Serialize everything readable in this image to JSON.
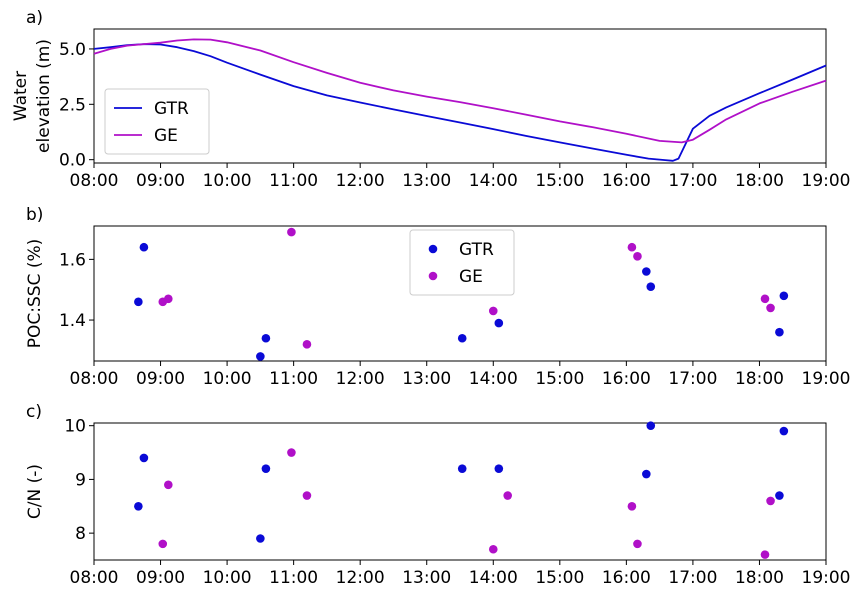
{
  "colors": {
    "gtr": "#0a0ad6",
    "ge": "#b010c8"
  },
  "chart_data": [
    {
      "panel": "a)",
      "type": "line",
      "ylabel": [
        "Water",
        "elevation (m)"
      ],
      "xlim": [
        "08:00",
        "19:00"
      ],
      "ylim": [
        -0.15,
        5.9
      ],
      "xticks": [
        "08:00",
        "09:00",
        "10:00",
        "11:00",
        "12:00",
        "13:00",
        "14:00",
        "15:00",
        "16:00",
        "17:00",
        "18:00",
        "19:00"
      ],
      "yticks": [
        "0.0",
        "2.5",
        "5.0"
      ],
      "legend": {
        "position": "lower-left",
        "entries": [
          "GTR",
          "GE"
        ]
      },
      "series": [
        {
          "name": "GTR",
          "points": [
            [
              "08:00",
              5.0
            ],
            [
              "08:15",
              5.08
            ],
            [
              "08:30",
              5.17
            ],
            [
              "08:45",
              5.22
            ],
            [
              "09:00",
              5.2
            ],
            [
              "09:15",
              5.08
            ],
            [
              "09:30",
              4.9
            ],
            [
              "09:45",
              4.67
            ],
            [
              "10:00",
              4.38
            ],
            [
              "10:30",
              3.84
            ],
            [
              "11:00",
              3.32
            ],
            [
              "11:30",
              2.9
            ],
            [
              "12:00",
              2.58
            ],
            [
              "12:30",
              2.27
            ],
            [
              "13:00",
              1.97
            ],
            [
              "13:30",
              1.68
            ],
            [
              "14:00",
              1.38
            ],
            [
              "14:30",
              1.07
            ],
            [
              "15:00",
              0.78
            ],
            [
              "15:30",
              0.5
            ],
            [
              "16:00",
              0.22
            ],
            [
              "16:20",
              0.05
            ],
            [
              "16:35",
              -0.02
            ],
            [
              "16:42",
              -0.05
            ],
            [
              "16:47",
              0.05
            ],
            [
              "17:00",
              1.4
            ],
            [
              "17:15",
              1.98
            ],
            [
              "17:30",
              2.36
            ],
            [
              "18:00",
              3.0
            ],
            [
              "18:30",
              3.62
            ],
            [
              "19:00",
              4.25
            ]
          ]
        },
        {
          "name": "GE",
          "points": [
            [
              "08:00",
              4.78
            ],
            [
              "08:15",
              5.0
            ],
            [
              "08:30",
              5.15
            ],
            [
              "08:45",
              5.22
            ],
            [
              "09:00",
              5.28
            ],
            [
              "09:15",
              5.38
            ],
            [
              "09:30",
              5.43
            ],
            [
              "09:45",
              5.42
            ],
            [
              "10:00",
              5.3
            ],
            [
              "10:30",
              4.93
            ],
            [
              "11:00",
              4.4
            ],
            [
              "11:30",
              3.92
            ],
            [
              "12:00",
              3.47
            ],
            [
              "12:30",
              3.13
            ],
            [
              "13:00",
              2.85
            ],
            [
              "13:30",
              2.6
            ],
            [
              "14:00",
              2.32
            ],
            [
              "14:30",
              2.03
            ],
            [
              "15:00",
              1.73
            ],
            [
              "15:30",
              1.46
            ],
            [
              "16:00",
              1.17
            ],
            [
              "16:30",
              0.85
            ],
            [
              "16:50",
              0.78
            ],
            [
              "17:00",
              0.9
            ],
            [
              "17:15",
              1.35
            ],
            [
              "17:30",
              1.82
            ],
            [
              "18:00",
              2.54
            ],
            [
              "18:30",
              3.07
            ],
            [
              "19:00",
              3.57
            ]
          ]
        }
      ]
    },
    {
      "panel": "b)",
      "type": "scatter",
      "ylabel": [
        "POC:SSC (%)"
      ],
      "xlim": [
        "08:00",
        "19:00"
      ],
      "ylim": [
        1.265,
        1.71
      ],
      "xticks": [
        "08:00",
        "09:00",
        "10:00",
        "11:00",
        "12:00",
        "13:00",
        "14:00",
        "15:00",
        "16:00",
        "17:00",
        "18:00",
        "19:00"
      ],
      "yticks": [
        "1.4",
        "1.6"
      ],
      "legend": {
        "position": "upper-center",
        "entries": [
          "GTR",
          "GE"
        ]
      },
      "series": [
        {
          "name": "GTR",
          "points": [
            [
              "08:40",
              1.46
            ],
            [
              "08:45",
              1.64
            ],
            [
              "10:30",
              1.28
            ],
            [
              "10:35",
              1.34
            ],
            [
              "13:32",
              1.34
            ],
            [
              "14:05",
              1.39
            ],
            [
              "16:18",
              1.56
            ],
            [
              "16:22",
              1.51
            ],
            [
              "18:18",
              1.36
            ],
            [
              "18:22",
              1.48
            ]
          ]
        },
        {
          "name": "GE",
          "points": [
            [
              "09:02",
              1.46
            ],
            [
              "09:07",
              1.47
            ],
            [
              "10:58",
              1.69
            ],
            [
              "11:12",
              1.32
            ],
            [
              "14:00",
              1.43
            ],
            [
              "16:05",
              1.64
            ],
            [
              "16:10",
              1.61
            ],
            [
              "18:05",
              1.47
            ],
            [
              "18:10",
              1.44
            ]
          ]
        }
      ]
    },
    {
      "panel": "c)",
      "type": "scatter",
      "ylabel": [
        "C/N (-)"
      ],
      "xlim": [
        "08:00",
        "19:00"
      ],
      "ylim": [
        7.5,
        10.05
      ],
      "xticks": [
        "08:00",
        "09:00",
        "10:00",
        "11:00",
        "12:00",
        "13:00",
        "14:00",
        "15:00",
        "16:00",
        "17:00",
        "18:00",
        "19:00"
      ],
      "yticks": [
        "8",
        "9",
        "10"
      ],
      "series": [
        {
          "name": "GTR",
          "points": [
            [
              "08:40",
              8.5
            ],
            [
              "08:45",
              9.4
            ],
            [
              "10:30",
              7.9
            ],
            [
              "10:35",
              9.2
            ],
            [
              "13:32",
              9.2
            ],
            [
              "14:05",
              9.2
            ],
            [
              "16:18",
              9.1
            ],
            [
              "16:22",
              10.0
            ],
            [
              "18:18",
              8.7
            ],
            [
              "18:22",
              9.9
            ]
          ]
        },
        {
          "name": "GE",
          "points": [
            [
              "09:02",
              7.8
            ],
            [
              "09:07",
              8.9
            ],
            [
              "10:58",
              9.5
            ],
            [
              "11:12",
              8.7
            ],
            [
              "14:00",
              7.7
            ],
            [
              "14:13",
              8.7
            ],
            [
              "16:05",
              8.5
            ],
            [
              "16:10",
              7.8
            ],
            [
              "18:05",
              7.6
            ],
            [
              "18:10",
              8.6
            ]
          ]
        }
      ]
    }
  ]
}
